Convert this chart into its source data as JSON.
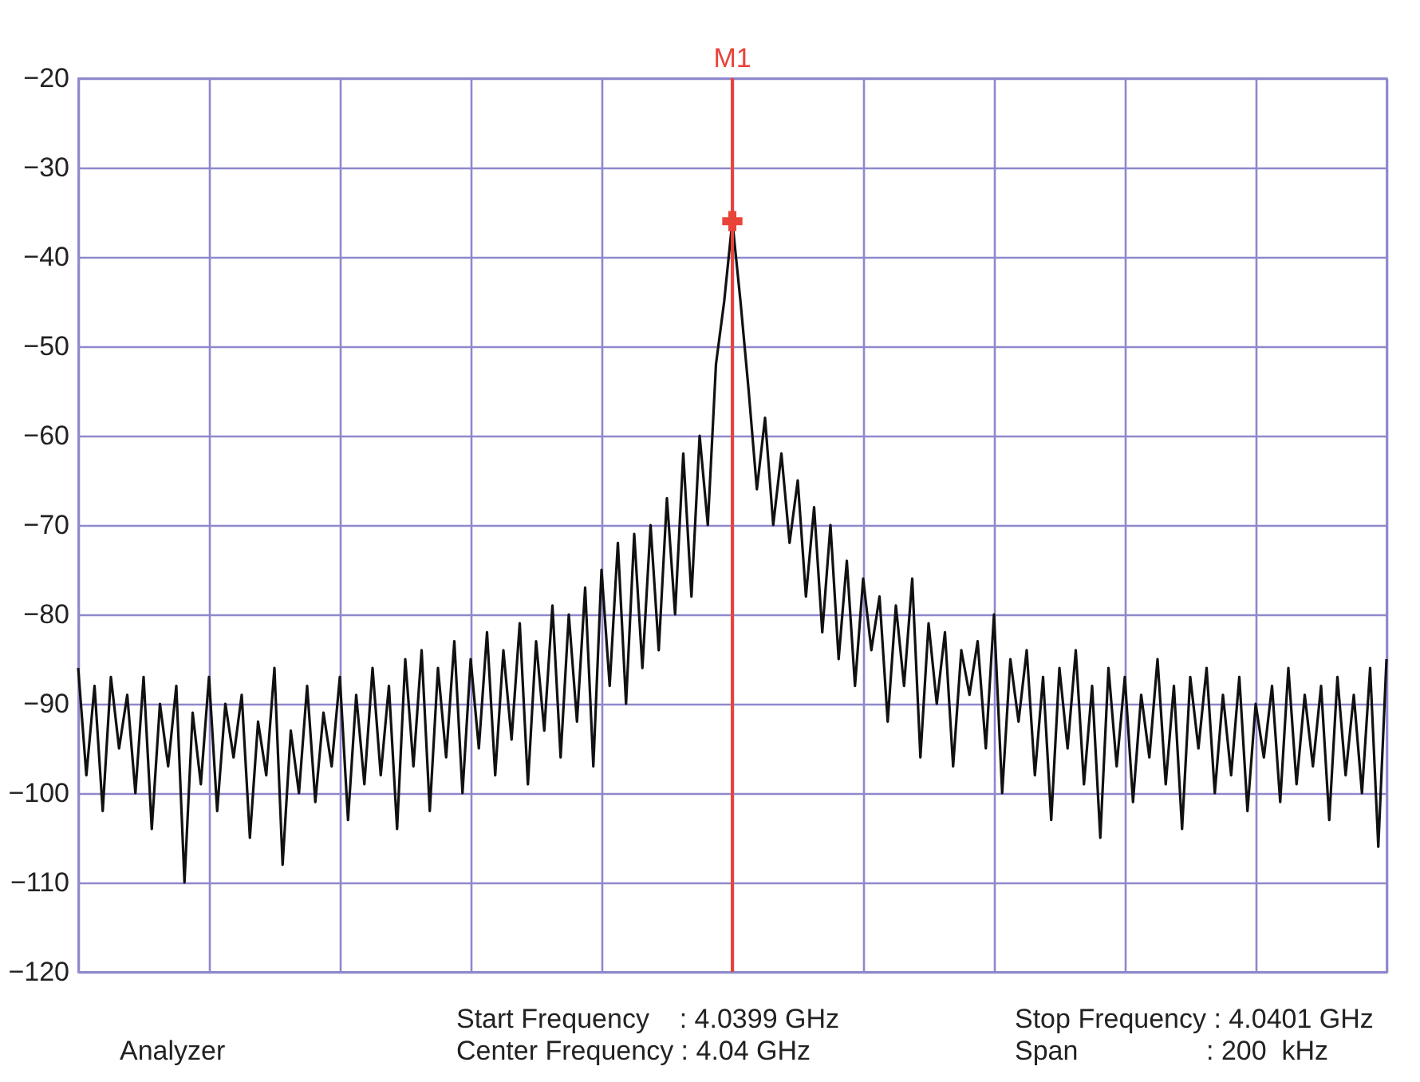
{
  "chart_data": {
    "type": "line",
    "categories": [
      null,
      null,
      null,
      null,
      null,
      null,
      null,
      null,
      null,
      null,
      null,
      null,
      null,
      null,
      null,
      null,
      null,
      null,
      null,
      null,
      null,
      null,
      null,
      null,
      null,
      null,
      null,
      null,
      null,
      null,
      null,
      null,
      null,
      null,
      null,
      null,
      null,
      null,
      null,
      null,
      null,
      null,
      null,
      null,
      null,
      null,
      null,
      null,
      null,
      null,
      null,
      null,
      null,
      null,
      null,
      null,
      null,
      null,
      null,
      null,
      null,
      null,
      null,
      null,
      null,
      null,
      null,
      null,
      null,
      null,
      null,
      null,
      null,
      null,
      null,
      null,
      null,
      null,
      null,
      null,
      null,
      null,
      null,
      null,
      null,
      null,
      null,
      null,
      null,
      null,
      null,
      null,
      null,
      null,
      null,
      null,
      null,
      null,
      null,
      null,
      null,
      null,
      null,
      null,
      null,
      null,
      null,
      null,
      null,
      null,
      null,
      null,
      null,
      null,
      null,
      null,
      null,
      null,
      null,
      null,
      null,
      null,
      null,
      null,
      null,
      null,
      null,
      null,
      null,
      null,
      null,
      null,
      null,
      null,
      null,
      null,
      null,
      null,
      null,
      null,
      null,
      null,
      null,
      null,
      null,
      null,
      null,
      null,
      null,
      null,
      null,
      null,
      null,
      null,
      null,
      null,
      null,
      null,
      null,
      null,
      null
    ],
    "series": [
      {
        "color": "#111111",
        "values": [
          -86,
          -98,
          -88,
          -102,
          -87,
          -95,
          -89,
          -100,
          -87,
          -104,
          -90,
          -97,
          -88,
          -110,
          -91,
          -99,
          -87,
          -102,
          -90,
          -96,
          -89,
          -105,
          -92,
          -98,
          -86,
          -108,
          -93,
          -100,
          -88,
          -101,
          -91,
          -97,
          -87,
          -103,
          -89,
          -99,
          -86,
          -98,
          -88,
          -104,
          -85,
          -97,
          -84,
          -102,
          -86,
          -96,
          -83,
          -100,
          -85,
          -95,
          -82,
          -98,
          -84,
          -94,
          -81,
          -99,
          -83,
          -93,
          -79,
          -96,
          -80,
          -92,
          -77,
          -97,
          -75,
          -88,
          -72,
          -90,
          -71,
          -86,
          -70,
          -84,
          -67,
          -80,
          -62,
          -78,
          -60,
          -70,
          -52,
          -45,
          -36,
          -45,
          -55,
          -66,
          -58,
          -70,
          -62,
          -72,
          -65,
          -78,
          -68,
          -82,
          -70,
          -85,
          -74,
          -88,
          -76,
          -84,
          -78,
          -92,
          -79,
          -88,
          -76,
          -96,
          -81,
          -90,
          -82,
          -97,
          -84,
          -89,
          -83,
          -95,
          -80,
          -100,
          -85,
          -92,
          -84,
          -98,
          -87,
          -103,
          -86,
          -95,
          -84,
          -99,
          -88,
          -105,
          -86,
          -97,
          -87,
          -101,
          -89,
          -96,
          -85,
          -99,
          -88,
          -104,
          -87,
          -95,
          -86,
          -100,
          -89,
          -98,
          -87,
          -102,
          -90,
          -96,
          -88,
          -101,
          -86,
          -99,
          -89,
          -97,
          -88,
          -103,
          -87,
          -98,
          -89,
          -100,
          -86,
          -106,
          -85
        ]
      },
      {
        "type": "scatter",
        "name": "M1",
        "color": "#e8443a",
        "marker": "cross",
        "values": [
          null,
          null,
          null,
          null,
          null,
          null,
          null,
          null,
          null,
          null,
          null,
          null,
          null,
          null,
          null,
          null,
          null,
          null,
          null,
          null,
          null,
          null,
          null,
          null,
          null,
          null,
          null,
          null,
          null,
          null,
          null,
          null,
          null,
          null,
          null,
          null,
          null,
          null,
          null,
          null,
          null,
          null,
          null,
          null,
          null,
          null,
          null,
          null,
          null,
          null,
          null,
          null,
          null,
          null,
          null,
          null,
          null,
          null,
          null,
          null,
          null,
          null,
          null,
          null,
          null,
          null,
          null,
          null,
          null,
          null,
          null,
          null,
          null,
          null,
          null,
          null,
          null,
          null,
          null,
          null,
          -36,
          null,
          null,
          null,
          null,
          null,
          null,
          null,
          null,
          null,
          null,
          null,
          null,
          null,
          null,
          null,
          null,
          null,
          null,
          null,
          null,
          null,
          null,
          null,
          null,
          null,
          null,
          null,
          null,
          null,
          null,
          null,
          null,
          null,
          null,
          null,
          null,
          null,
          null,
          null,
          null,
          null,
          null,
          null,
          null,
          null,
          null,
          null,
          null,
          null,
          null,
          null,
          null,
          null,
          null,
          null,
          null,
          null,
          null,
          null,
          null,
          null,
          null,
          null,
          null,
          null,
          null,
          null,
          null,
          null,
          null,
          null,
          null,
          null,
          null,
          null,
          null,
          null,
          null,
          null,
          null
        ]
      }
    ],
    "ylim": [
      -120,
      -20
    ],
    "yticks": [
      -120,
      -110,
      -100,
      -90,
      -80,
      -70,
      -60,
      -50,
      -40,
      -30,
      -20
    ],
    "grid": true,
    "legend": false,
    "marker": "none",
    "line_style": "solid",
    "annotations": [
      "Start Frequency    : 4.0399 GHz",
      "Stop Frequency : 4.0401 GHz",
      "Analyzer",
      "Center Frequency : 4.04 GHz",
      "Span                 : 200  kHz"
    ]
  }
}
